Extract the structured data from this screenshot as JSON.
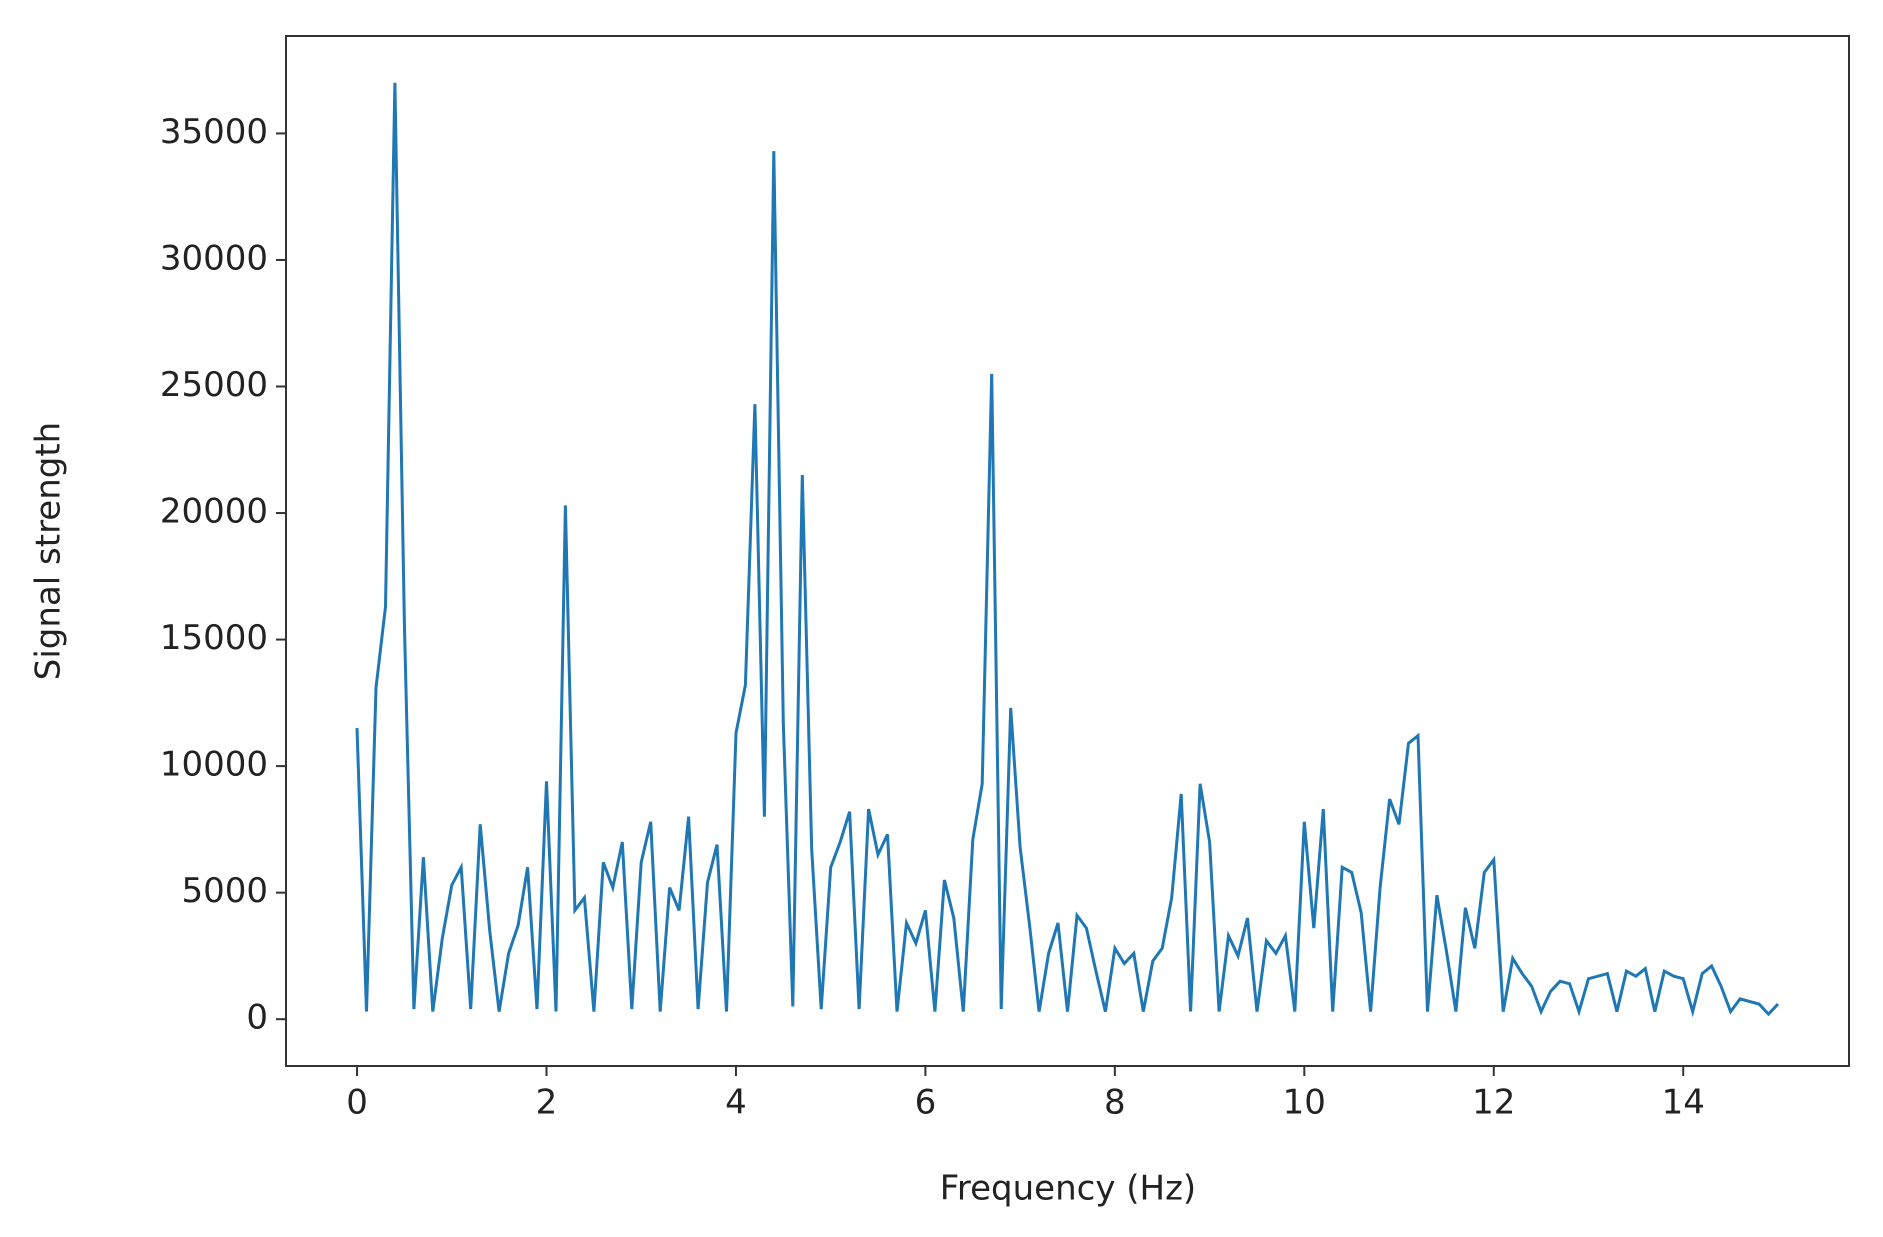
{
  "chart_data": {
    "type": "line",
    "xlabel": "Frequency (Hz)",
    "ylabel": "Signal strength",
    "xlim": [
      -0.75,
      15.75
    ],
    "ylim": [
      -1850,
      38850
    ],
    "xticks": [
      0,
      2,
      4,
      6,
      8,
      10,
      12,
      14
    ],
    "yticks": [
      0,
      5000,
      10000,
      15000,
      20000,
      25000,
      30000,
      35000
    ],
    "series": [
      {
        "color": "#1f77b4",
        "x": [
          0,
          0.1,
          0.2,
          0.3,
          0.4,
          0.5,
          0.6,
          0.7,
          0.8,
          0.9,
          1,
          1.1,
          1.2,
          1.3,
          1.4,
          1.5,
          1.6,
          1.7,
          1.8,
          1.9,
          2,
          2.1,
          2.2,
          2.3,
          2.4,
          2.5,
          2.6,
          2.7,
          2.8,
          2.9,
          3,
          3.1,
          3.2,
          3.3,
          3.4,
          3.5,
          3.6,
          3.7,
          3.8,
          3.9,
          4,
          4.1,
          4.2,
          4.3,
          4.4,
          4.5,
          4.6,
          4.7,
          4.8,
          4.9,
          5,
          5.1,
          5.2,
          5.3,
          5.4,
          5.5,
          5.6,
          5.7,
          5.8,
          5.9,
          6,
          6.1,
          6.2,
          6.3,
          6.4,
          6.5,
          6.6,
          6.7,
          6.8,
          6.9,
          7,
          7.1,
          7.2,
          7.3,
          7.4,
          7.5,
          7.6,
          7.7,
          7.8,
          7.9,
          8,
          8.1,
          8.2,
          8.3,
          8.4,
          8.5,
          8.6,
          8.7,
          8.8,
          8.9,
          9,
          9.1,
          9.2,
          9.3,
          9.4,
          9.5,
          9.6,
          9.7,
          9.8,
          9.9,
          10,
          10.1,
          10.2,
          10.3,
          10.4,
          10.5,
          10.6,
          10.7,
          10.8,
          10.9,
          11,
          11.1,
          11.2,
          11.3,
          11.4,
          11.5,
          11.6,
          11.7,
          11.8,
          11.9,
          12,
          12.1,
          12.2,
          12.3,
          12.4,
          12.5,
          12.6,
          12.7,
          12.8,
          12.9,
          13,
          13.1,
          13.2,
          13.3,
          13.4,
          13.5,
          13.6,
          13.7,
          13.8,
          13.9,
          14,
          14.1,
          14.2,
          14.3,
          14.4,
          14.5,
          14.6,
          14.7,
          14.8,
          14.9,
          15
        ],
        "values": [
          11500,
          300,
          13100,
          16300,
          37000,
          15600,
          400,
          6400,
          300,
          3200,
          5300,
          6000,
          400,
          7700,
          3500,
          300,
          2600,
          3700,
          6000,
          400,
          9400,
          300,
          20300,
          4300,
          4800,
          300,
          6200,
          5200,
          7000,
          400,
          6200,
          7800,
          300,
          5200,
          4300,
          8000,
          400,
          5400,
          6900,
          300,
          11300,
          13200,
          24300,
          8000,
          34300,
          11700,
          500,
          21500,
          6700,
          400,
          6000,
          7000,
          8200,
          400,
          8300,
          6500,
          7300,
          300,
          3800,
          3000,
          4300,
          300,
          5500,
          4000,
          300,
          7100,
          9300,
          25500,
          400,
          12300,
          6800,
          3700,
          300,
          2600,
          3800,
          300,
          4100,
          3600,
          1900,
          300,
          2800,
          2200,
          2600,
          300,
          2300,
          2800,
          4800,
          8900,
          300,
          9300,
          7000,
          300,
          3300,
          2500,
          4000,
          300,
          3100,
          2600,
          3300,
          300,
          7800,
          3600,
          8300,
          300,
          6000,
          5800,
          4200,
          300,
          5200,
          8700,
          7700,
          10900,
          11200,
          300,
          4900,
          2700,
          300,
          4400,
          2800,
          5800,
          6300,
          300,
          2400,
          1800,
          1300,
          300,
          1100,
          1500,
          1400,
          300,
          1600,
          1700,
          1800,
          300,
          1900,
          1700,
          2000,
          300,
          1900,
          1700,
          1600,
          300,
          1800,
          2100,
          1300,
          300,
          800,
          700,
          600,
          200,
          600
        ]
      }
    ]
  }
}
